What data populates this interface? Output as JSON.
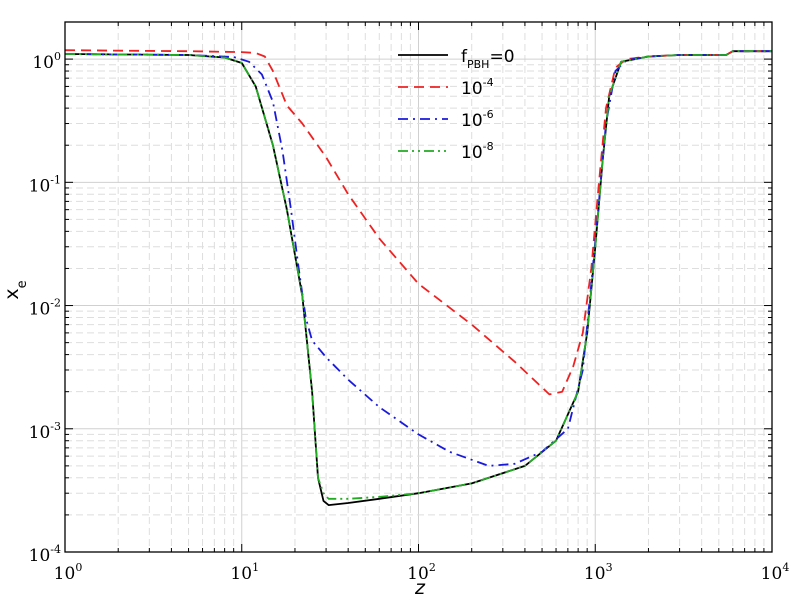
{
  "chart_data": {
    "type": "line",
    "title": "",
    "xlabel": "z",
    "ylabel": "x",
    "ylabel_sub": "e",
    "xscale": "log",
    "yscale": "log",
    "xlim": [
      1,
      10000
    ],
    "ylim": [
      0.0001,
      2
    ],
    "grid": true,
    "legend_position": "top-center",
    "x_ticks": [
      {
        "value": 1,
        "base": "10",
        "exp": "0"
      },
      {
        "value": 10,
        "base": "10",
        "exp": "1"
      },
      {
        "value": 100,
        "base": "10",
        "exp": "2"
      },
      {
        "value": 1000,
        "base": "10",
        "exp": "3"
      },
      {
        "value": 10000,
        "base": "10",
        "exp": "4"
      }
    ],
    "y_ticks": [
      {
        "value": 0.0001,
        "base": "10",
        "exp": "-4"
      },
      {
        "value": 0.001,
        "base": "10",
        "exp": "-3"
      },
      {
        "value": 0.01,
        "base": "10",
        "exp": "-2"
      },
      {
        "value": 0.1,
        "base": "10",
        "exp": "-1"
      },
      {
        "value": 1,
        "base": "10",
        "exp": "0"
      }
    ],
    "series": [
      {
        "name": "f",
        "name_sub": "PBH",
        "name_suffix": "=0",
        "color": "#000000",
        "dash": "solid",
        "points": [
          [
            1,
            1.1
          ],
          [
            5,
            1.08
          ],
          [
            8,
            1.03
          ],
          [
            10,
            0.93
          ],
          [
            12,
            0.6
          ],
          [
            15,
            0.2
          ],
          [
            18,
            0.06
          ],
          [
            22,
            0.012
          ],
          [
            25,
            0.002
          ],
          [
            27,
            0.0004
          ],
          [
            29,
            0.00026
          ],
          [
            31,
            0.00024
          ],
          [
            40,
            0.00025
          ],
          [
            60,
            0.00027
          ],
          [
            100,
            0.0003
          ],
          [
            200,
            0.00036
          ],
          [
            400,
            0.0005
          ],
          [
            600,
            0.0008
          ],
          [
            800,
            0.002
          ],
          [
            900,
            0.006
          ],
          [
            1000,
            0.03
          ],
          [
            1100,
            0.15
          ],
          [
            1200,
            0.5
          ],
          [
            1400,
            0.95
          ],
          [
            2000,
            1.05
          ],
          [
            3000,
            1.08
          ],
          [
            5500,
            1.08
          ],
          [
            6000,
            1.16
          ],
          [
            10000,
            1.16
          ]
        ]
      },
      {
        "name": "10",
        "name_sup": "-4",
        "color": "#ee2222",
        "dash": "dash",
        "points": [
          [
            1,
            1.18
          ],
          [
            5,
            1.16
          ],
          [
            10,
            1.14
          ],
          [
            12,
            1.12
          ],
          [
            13.5,
            1.05
          ],
          [
            15,
            0.8
          ],
          [
            18,
            0.42
          ],
          [
            22,
            0.3
          ],
          [
            30,
            0.16
          ],
          [
            40,
            0.08
          ],
          [
            60,
            0.035
          ],
          [
            100,
            0.015
          ],
          [
            200,
            0.007
          ],
          [
            350,
            0.0035
          ],
          [
            550,
            0.0019
          ],
          [
            650,
            0.002
          ],
          [
            750,
            0.0032
          ],
          [
            850,
            0.006
          ],
          [
            950,
            0.02
          ],
          [
            1050,
            0.1
          ],
          [
            1150,
            0.4
          ],
          [
            1300,
            0.85
          ],
          [
            1500,
            1.0
          ],
          [
            2000,
            1.05
          ],
          [
            3000,
            1.08
          ],
          [
            5500,
            1.08
          ],
          [
            6000,
            1.16
          ],
          [
            10000,
            1.16
          ]
        ]
      },
      {
        "name": "10",
        "name_sup": "-6",
        "color": "#1a1add",
        "dash": "dashdot",
        "points": [
          [
            1,
            1.1
          ],
          [
            5,
            1.08
          ],
          [
            9,
            1.04
          ],
          [
            11,
            0.95
          ],
          [
            13,
            0.75
          ],
          [
            15,
            0.45
          ],
          [
            17,
            0.18
          ],
          [
            19,
            0.06
          ],
          [
            21,
            0.02
          ],
          [
            23,
            0.008
          ],
          [
            25,
            0.0052
          ],
          [
            30,
            0.0038
          ],
          [
            40,
            0.0025
          ],
          [
            60,
            0.0015
          ],
          [
            100,
            0.0009
          ],
          [
            150,
            0.00065
          ],
          [
            250,
            0.0005
          ],
          [
            350,
            0.00052
          ],
          [
            500,
            0.00065
          ],
          [
            700,
            0.001
          ],
          [
            850,
            0.003
          ],
          [
            950,
            0.015
          ],
          [
            1050,
            0.07
          ],
          [
            1150,
            0.3
          ],
          [
            1300,
            0.8
          ],
          [
            1500,
            0.98
          ],
          [
            2000,
            1.05
          ],
          [
            3000,
            1.08
          ],
          [
            5500,
            1.08
          ],
          [
            6000,
            1.16
          ],
          [
            10000,
            1.16
          ]
        ]
      },
      {
        "name": "10",
        "name_sup": "-8",
        "color": "#22aa22",
        "dash": "dashdotdot",
        "points": [
          [
            1,
            1.1
          ],
          [
            5,
            1.08
          ],
          [
            8,
            1.03
          ],
          [
            10,
            0.93
          ],
          [
            12,
            0.6
          ],
          [
            15,
            0.2
          ],
          [
            18,
            0.06
          ],
          [
            22,
            0.012
          ],
          [
            25,
            0.002
          ],
          [
            27,
            0.0004
          ],
          [
            29,
            0.0003
          ],
          [
            31,
            0.00027
          ],
          [
            40,
            0.00027
          ],
          [
            60,
            0.00028
          ],
          [
            100,
            0.0003
          ],
          [
            200,
            0.00036
          ],
          [
            400,
            0.0005
          ],
          [
            600,
            0.0008
          ],
          [
            800,
            0.002
          ],
          [
            900,
            0.006
          ],
          [
            1000,
            0.03
          ],
          [
            1100,
            0.15
          ],
          [
            1200,
            0.5
          ],
          [
            1400,
            0.95
          ],
          [
            2000,
            1.05
          ],
          [
            3000,
            1.08
          ],
          [
            5500,
            1.08
          ],
          [
            6000,
            1.16
          ],
          [
            10000,
            1.16
          ]
        ]
      }
    ]
  }
}
